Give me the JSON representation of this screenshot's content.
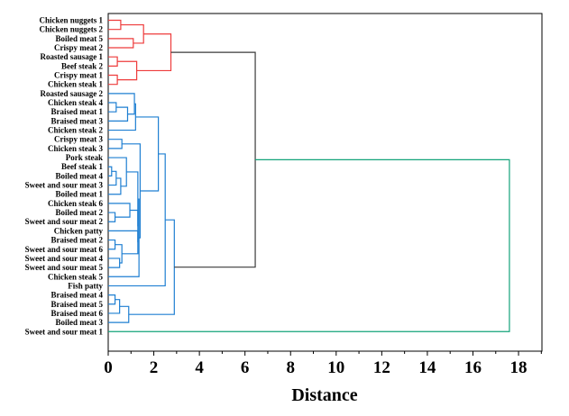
{
  "chart_data": {
    "type": "dendrogram",
    "xlabel": "Distance",
    "xlim": [
      0,
      19
    ],
    "xticks": [
      0,
      2,
      4,
      6,
      8,
      10,
      12,
      14,
      16,
      18
    ],
    "colors": {
      "red": "#ee3b3b",
      "blue": "#1e7fd2",
      "black": "#3a3a3a",
      "green": "#13a37a"
    },
    "leaves": [
      "Chicken nuggets 1",
      "Chicken nuggets 2",
      "Boiled meat 5",
      "Crispy meat 2",
      "Roasted sausage 1",
      "Beef steak 2",
      "Crispy meat 1",
      "Chicken steak 1",
      "Roasted sausage 2",
      "Chicken steak 4",
      "Braised meat 1",
      "Braised meat 3",
      "Chicken steak 2",
      "Crispy meat 3",
      "Chicken steak 3",
      "Pork steak",
      "Beef steak 1",
      "Boiled meat 4",
      "Sweet and sour meat 3",
      "Boiled meat 1",
      "Chicken steak 6",
      "Boiled meat 2",
      "Sweet and sour meat 2",
      "Chicken patty",
      "Braised meat 2",
      "Sweet and sour meat 6",
      "Sweet and sour meat 4",
      "Sweet and sour meat 5",
      "Chicken steak 5",
      "Fish patty",
      "Braised meat 4",
      "Braised meat 5",
      "Braised meat 6",
      "Boiled meat 3",
      "Sweet and sour meat 1"
    ],
    "merges": [
      {
        "a": 1,
        "b": 2,
        "h": 0.55,
        "color": "red"
      },
      {
        "a": 3,
        "b": 4,
        "h": 1.1,
        "color": "red"
      },
      {
        "a": "m0",
        "b": "m1",
        "h": 1.55,
        "color": "red"
      },
      {
        "a": 5,
        "b": 6,
        "h": 0.4,
        "color": "red"
      },
      {
        "a": 7,
        "b": 8,
        "h": 0.4,
        "color": "red"
      },
      {
        "a": "m3",
        "b": "m4",
        "h": 1.25,
        "color": "red"
      },
      {
        "a": "m2",
        "b": "m5",
        "h": 2.75,
        "color": "red"
      },
      {
        "a": 10,
        "b": 11,
        "h": 0.35,
        "color": "blue"
      },
      {
        "a": "m7",
        "b": 12,
        "h": 0.85,
        "color": "blue"
      },
      {
        "a": 9,
        "b": "m8",
        "h": 1.15,
        "color": "blue"
      },
      {
        "a": "m9",
        "b": 13,
        "h": 1.2,
        "color": "blue"
      },
      {
        "a": 14,
        "b": 15,
        "h": 0.6,
        "color": "blue"
      },
      {
        "a": 17,
        "b": 18,
        "h": 0.15,
        "color": "blue"
      },
      {
        "a": "m12",
        "b": 19,
        "h": 0.35,
        "color": "blue"
      },
      {
        "a": "m13",
        "b": 20,
        "h": 0.55,
        "color": "blue"
      },
      {
        "a": 16,
        "b": "m14",
        "h": 0.8,
        "color": "blue"
      },
      {
        "a": 22,
        "b": 23,
        "h": 0.3,
        "color": "blue"
      },
      {
        "a": 21,
        "b": "m16",
        "h": 0.95,
        "color": "blue"
      },
      {
        "a": 25,
        "b": 26,
        "h": 0.3,
        "color": "blue"
      },
      {
        "a": 27,
        "b": 28,
        "h": 0.5,
        "color": "blue"
      },
      {
        "a": "m18",
        "b": "m19",
        "h": 0.6,
        "color": "blue"
      },
      {
        "a": 24,
        "b": "m20",
        "h": 1.3,
        "color": "blue"
      },
      {
        "a": "m17",
        "b": "m21",
        "h": 1.3,
        "color": "blue"
      },
      {
        "a": "m15",
        "b": "m22",
        "h": 1.3,
        "color": "blue"
      },
      {
        "a": "m23",
        "b": 29,
        "h": 1.35,
        "color": "blue"
      },
      {
        "a": "m11",
        "b": "m24",
        "h": 1.4,
        "color": "blue"
      },
      {
        "a": "m10",
        "b": "m25",
        "h": 2.2,
        "color": "blue"
      },
      {
        "a": 31,
        "b": 32,
        "h": 0.3,
        "color": "blue"
      },
      {
        "a": "m27",
        "b": 33,
        "h": 0.5,
        "color": "blue"
      },
      {
        "a": "m28",
        "b": 34,
        "h": 0.9,
        "color": "blue"
      },
      {
        "a": "m26",
        "b": 30,
        "h": 2.5,
        "color": "blue"
      },
      {
        "a": "m30",
        "b": "m29",
        "h": 2.9,
        "color": "blue"
      },
      {
        "a": "m6",
        "b": "m31",
        "h": 6.45,
        "color": "black"
      },
      {
        "a": "m32",
        "b": 35,
        "h": 17.6,
        "color": "green"
      }
    ]
  }
}
